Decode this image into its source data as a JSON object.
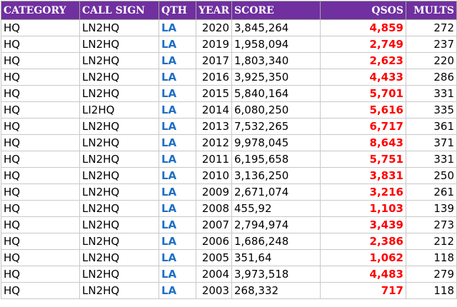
{
  "table": {
    "headers": [
      "CATEGORY",
      "CALL SIGN",
      "QTH",
      "YEAR",
      "SCORE",
      "QSOS",
      "MULTS"
    ],
    "rows": [
      {
        "category": "HQ",
        "call_sign": "LN2HQ",
        "qth": "LA",
        "year": "2020",
        "score": "3,845,264",
        "qsos": "4,859",
        "mults": "272"
      },
      {
        "category": "HQ",
        "call_sign": "LN2HQ",
        "qth": "LA",
        "year": "2019",
        "score": "1,958,094",
        "qsos": "2,749",
        "mults": "237"
      },
      {
        "category": "HQ",
        "call_sign": "LN2HQ",
        "qth": "LA",
        "year": "2017",
        "score": "1,803,340",
        "qsos": "2,623",
        "mults": "220"
      },
      {
        "category": "HQ",
        "call_sign": "LN2HQ",
        "qth": "LA",
        "year": "2016",
        "score": "3,925,350",
        "qsos": "4,433",
        "mults": "286"
      },
      {
        "category": "HQ",
        "call_sign": "LN2HQ",
        "qth": "LA",
        "year": "2015",
        "score": "5,840,164",
        "qsos": "5,701",
        "mults": "331"
      },
      {
        "category": "HQ",
        "call_sign": "LI2HQ",
        "qth": "LA",
        "year": "2014",
        "score": "6,080,250",
        "qsos": "5,616",
        "mults": "335"
      },
      {
        "category": "HQ",
        "call_sign": "LN2HQ",
        "qth": "LA",
        "year": "2013",
        "score": "7,532,265",
        "qsos": "6,717",
        "mults": "361"
      },
      {
        "category": "HQ",
        "call_sign": "LN2HQ",
        "qth": "LA",
        "year": "2012",
        "score": "9,978,045",
        "qsos": "8,643",
        "mults": "371"
      },
      {
        "category": "HQ",
        "call_sign": "LN2HQ",
        "qth": "LA",
        "year": "2011",
        "score": "6,195,658",
        "qsos": "5,751",
        "mults": "331"
      },
      {
        "category": "HQ",
        "call_sign": "LN2HQ",
        "qth": "LA",
        "year": "2010",
        "score": "3,136,250",
        "qsos": "3,831",
        "mults": "250"
      },
      {
        "category": "HQ",
        "call_sign": "LN2HQ",
        "qth": "LA",
        "year": "2009",
        "score": "2,671,074",
        "qsos": "3,216",
        "mults": "261"
      },
      {
        "category": "HQ",
        "call_sign": "LN2HQ",
        "qth": "LA",
        "year": "2008",
        "score": "455,92",
        "qsos": "1,103",
        "mults": "139"
      },
      {
        "category": "HQ",
        "call_sign": "LN2HQ",
        "qth": "LA",
        "year": "2007",
        "score": "2,794,974",
        "qsos": "3,439",
        "mults": "273"
      },
      {
        "category": "HQ",
        "call_sign": "LN2HQ",
        "qth": "LA",
        "year": "2006",
        "score": "1,686,248",
        "qsos": "2,386",
        "mults": "212"
      },
      {
        "category": "HQ",
        "call_sign": "LN2HQ",
        "qth": "LA",
        "year": "2005",
        "score": "351,64",
        "qsos": "1,062",
        "mults": "118"
      },
      {
        "category": "HQ",
        "call_sign": "LN2HQ",
        "qth": "LA",
        "year": "2004",
        "score": "3,973,518",
        "qsos": "4,483",
        "mults": "279"
      },
      {
        "category": "HQ",
        "call_sign": "LN2HQ",
        "qth": "LA",
        "year": "2003",
        "score": "268,332",
        "qsos": "717",
        "mults": "118"
      }
    ]
  },
  "colors": {
    "header_background": "#7030a0",
    "header_text": "#ffffff",
    "qth_text": "#1f6fc5",
    "qsos_text": "#ff0000"
  }
}
